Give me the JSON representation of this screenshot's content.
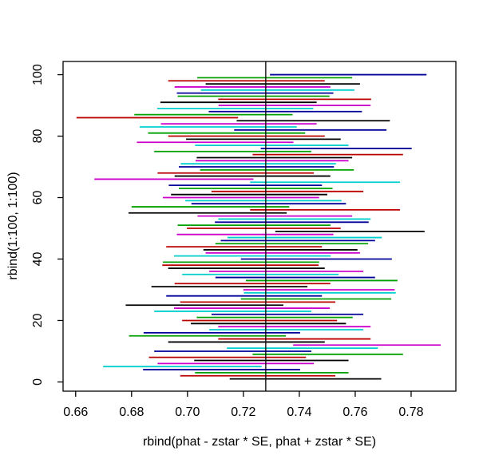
{
  "chart_data": {
    "type": "line",
    "variant": "horizontal-confidence-interval-segments",
    "title": "",
    "xlabel": "rbind(phat - zstar * SE, phat + zstar * SE)",
    "ylabel": "rbind(1:100, 1:100)",
    "xlim": [
      0.6555,
      0.796
    ],
    "ylim": [
      -3,
      104.3
    ],
    "grid": false,
    "legend": "none",
    "x_ticks": [
      {
        "value": 0.66,
        "label": "0.66"
      },
      {
        "value": 0.68,
        "label": "0.68"
      },
      {
        "value": 0.7,
        "label": "0.70"
      },
      {
        "value": 0.72,
        "label": "0.72"
      },
      {
        "value": 0.74,
        "label": "0.74"
      },
      {
        "value": 0.76,
        "label": "0.76"
      },
      {
        "value": 0.78,
        "label": "0.78"
      }
    ],
    "y_ticks": [
      {
        "value": 0,
        "label": "0"
      },
      {
        "value": 20,
        "label": "20"
      },
      {
        "value": 40,
        "label": "40"
      },
      {
        "value": 60,
        "label": "60"
      },
      {
        "value": 80,
        "label": "80"
      },
      {
        "value": 100,
        "label": "100"
      }
    ],
    "reference_line_x": 0.728,
    "palette": {
      "black": "#000000",
      "red": "#BB0000",
      "green": "#00A000",
      "blue": "#000099",
      "cyan": "#00CFCF",
      "magenta": "#CC00CC"
    },
    "color_cycle": [
      "black",
      "red",
      "green",
      "blue",
      "cyan",
      "magenta"
    ],
    "segments_columns": [
      "y",
      "x0",
      "x1",
      "color"
    ],
    "segments": [
      {
        "y": 1,
        "x0": 0.7151,
        "x1": 0.7693,
        "color": "black"
      },
      {
        "y": 2,
        "x0": 0.6974,
        "x1": 0.7529,
        "color": "red"
      },
      {
        "y": 3,
        "x0": 0.7027,
        "x1": 0.7576,
        "color": "green"
      },
      {
        "y": 4,
        "x0": 0.6841,
        "x1": 0.7403,
        "color": "blue"
      },
      {
        "y": 5,
        "x0": 0.6698,
        "x1": 0.7265,
        "color": "cyan"
      },
      {
        "y": 6,
        "x0": 0.6893,
        "x1": 0.7452,
        "color": "magenta"
      },
      {
        "y": 7,
        "x0": 0.7024,
        "x1": 0.7576,
        "color": "black"
      },
      {
        "y": 8,
        "x0": 0.6862,
        "x1": 0.7424,
        "color": "red"
      },
      {
        "y": 9,
        "x0": 0.7233,
        "x1": 0.7771,
        "color": "green"
      },
      {
        "y": 10,
        "x0": 0.6881,
        "x1": 0.7443,
        "color": "blue"
      },
      {
        "y": 11,
        "x0": 0.7141,
        "x1": 0.7681,
        "color": "cyan"
      },
      {
        "y": 12,
        "x0": 0.7378,
        "x1": 0.7906,
        "color": "magenta"
      },
      {
        "y": 13,
        "x0": 0.6931,
        "x1": 0.7491,
        "color": "black"
      },
      {
        "y": 14,
        "x0": 0.711,
        "x1": 0.7655,
        "color": "red"
      },
      {
        "y": 15,
        "x0": 0.6791,
        "x1": 0.7352,
        "color": "green"
      },
      {
        "y": 16,
        "x0": 0.6843,
        "x1": 0.7403,
        "color": "blue"
      },
      {
        "y": 17,
        "x0": 0.7078,
        "x1": 0.7629,
        "color": "cyan"
      },
      {
        "y": 18,
        "x0": 0.711,
        "x1": 0.7655,
        "color": "magenta"
      },
      {
        "y": 19,
        "x0": 0.7012,
        "x1": 0.7567,
        "color": "black"
      },
      {
        "y": 20,
        "x0": 0.6981,
        "x1": 0.7535,
        "color": "red"
      },
      {
        "y": 21,
        "x0": 0.7033,
        "x1": 0.7591,
        "color": "green"
      },
      {
        "y": 22,
        "x0": 0.7086,
        "x1": 0.7629,
        "color": "blue"
      },
      {
        "y": 23,
        "x0": 0.6881,
        "x1": 0.7443,
        "color": "cyan"
      },
      {
        "y": 24,
        "x0": 0.6952,
        "x1": 0.7509,
        "color": "magenta"
      },
      {
        "y": 25,
        "x0": 0.6779,
        "x1": 0.7343,
        "color": "black"
      },
      {
        "y": 26,
        "x0": 0.6974,
        "x1": 0.7529,
        "color": "red"
      },
      {
        "y": 27,
        "x0": 0.7191,
        "x1": 0.7729,
        "color": "green"
      },
      {
        "y": 28,
        "x0": 0.6924,
        "x1": 0.7481,
        "color": "blue"
      },
      {
        "y": 29,
        "x0": 0.7202,
        "x1": 0.7745,
        "color": "cyan"
      },
      {
        "y": 30,
        "x0": 0.72,
        "x1": 0.7741,
        "color": "magenta"
      },
      {
        "y": 31,
        "x0": 0.6871,
        "x1": 0.7429,
        "color": "black"
      },
      {
        "y": 32,
        "x0": 0.6954,
        "x1": 0.7511,
        "color": "red"
      },
      {
        "y": 33,
        "x0": 0.7209,
        "x1": 0.7751,
        "color": "green"
      },
      {
        "y": 34,
        "x0": 0.71,
        "x1": 0.7671,
        "color": "blue"
      },
      {
        "y": 35,
        "x0": 0.6981,
        "x1": 0.7541,
        "color": "cyan"
      },
      {
        "y": 36,
        "x0": 0.7078,
        "x1": 0.7629,
        "color": "magenta"
      },
      {
        "y": 37,
        "x0": 0.6931,
        "x1": 0.7491,
        "color": "black"
      },
      {
        "y": 38,
        "x0": 0.691,
        "x1": 0.7469,
        "color": "red"
      },
      {
        "y": 39,
        "x0": 0.6912,
        "x1": 0.7471,
        "color": "green"
      },
      {
        "y": 40,
        "x0": 0.7191,
        "x1": 0.7731,
        "color": "blue"
      },
      {
        "y": 41,
        "x0": 0.6952,
        "x1": 0.7512,
        "color": "cyan"
      },
      {
        "y": 42,
        "x0": 0.7065,
        "x1": 0.7617,
        "color": "magenta"
      },
      {
        "y": 43,
        "x0": 0.7057,
        "x1": 0.7608,
        "color": "black"
      },
      {
        "y": 44,
        "x0": 0.6924,
        "x1": 0.7481,
        "color": "red"
      },
      {
        "y": 45,
        "x0": 0.71,
        "x1": 0.7646,
        "color": "green"
      },
      {
        "y": 46,
        "x0": 0.7119,
        "x1": 0.7671,
        "color": "blue"
      },
      {
        "y": 47,
        "x0": 0.7143,
        "x1": 0.7695,
        "color": "cyan"
      },
      {
        "y": 48,
        "x0": 0.6962,
        "x1": 0.7522,
        "color": "magenta"
      },
      {
        "y": 49,
        "x0": 0.7314,
        "x1": 0.7848,
        "color": "black"
      },
      {
        "y": 50,
        "x0": 0.6998,
        "x1": 0.7548,
        "color": "red"
      },
      {
        "y": 51,
        "x0": 0.6965,
        "x1": 0.7512,
        "color": "green"
      },
      {
        "y": 52,
        "x0": 0.7098,
        "x1": 0.7648,
        "color": "blue"
      },
      {
        "y": 53,
        "x0": 0.711,
        "x1": 0.7655,
        "color": "cyan"
      },
      {
        "y": 54,
        "x0": 0.7036,
        "x1": 0.7589,
        "color": "magenta"
      },
      {
        "y": 55,
        "x0": 0.6789,
        "x1": 0.7355,
        "color": "black"
      },
      {
        "y": 56,
        "x0": 0.7224,
        "x1": 0.776,
        "color": "red"
      },
      {
        "y": 57,
        "x0": 0.68,
        "x1": 0.7364,
        "color": "green"
      },
      {
        "y": 58,
        "x0": 0.7014,
        "x1": 0.7567,
        "color": "blue"
      },
      {
        "y": 59,
        "x0": 0.6992,
        "x1": 0.7551,
        "color": "cyan"
      },
      {
        "y": 60,
        "x0": 0.6912,
        "x1": 0.7471,
        "color": "magenta"
      },
      {
        "y": 61,
        "x0": 0.6941,
        "x1": 0.75,
        "color": "black"
      },
      {
        "y": 62,
        "x0": 0.7086,
        "x1": 0.7629,
        "color": "red"
      },
      {
        "y": 63,
        "x0": 0.6969,
        "x1": 0.7519,
        "color": "green"
      },
      {
        "y": 64,
        "x0": 0.6933,
        "x1": 0.7481,
        "color": "blue"
      },
      {
        "y": 65,
        "x0": 0.7224,
        "x1": 0.776,
        "color": "cyan"
      },
      {
        "y": 66,
        "x0": 0.6667,
        "x1": 0.7236,
        "color": "magenta"
      },
      {
        "y": 67,
        "x0": 0.6954,
        "x1": 0.7511,
        "color": "black"
      },
      {
        "y": 68,
        "x0": 0.6893,
        "x1": 0.7452,
        "color": "red"
      },
      {
        "y": 69,
        "x0": 0.7045,
        "x1": 0.7595,
        "color": "green"
      },
      {
        "y": 70,
        "x0": 0.6969,
        "x1": 0.7524,
        "color": "blue"
      },
      {
        "y": 71,
        "x0": 0.6976,
        "x1": 0.7531,
        "color": "cyan"
      },
      {
        "y": 72,
        "x0": 0.7029,
        "x1": 0.7576,
        "color": "magenta"
      },
      {
        "y": 73,
        "x0": 0.7033,
        "x1": 0.7589,
        "color": "black"
      },
      {
        "y": 74,
        "x0": 0.7233,
        "x1": 0.7771,
        "color": "red"
      },
      {
        "y": 75,
        "x0": 0.6881,
        "x1": 0.7443,
        "color": "green"
      },
      {
        "y": 76,
        "x0": 0.7262,
        "x1": 0.7802,
        "color": "blue"
      },
      {
        "y": 77,
        "x0": 0.7027,
        "x1": 0.7576,
        "color": "cyan"
      },
      {
        "y": 78,
        "x0": 0.6819,
        "x1": 0.7379,
        "color": "magenta"
      },
      {
        "y": 79,
        "x0": 0.6995,
        "x1": 0.7548,
        "color": "black"
      },
      {
        "y": 80,
        "x0": 0.6931,
        "x1": 0.7491,
        "color": "red"
      },
      {
        "y": 81,
        "x0": 0.6859,
        "x1": 0.7421,
        "color": "green"
      },
      {
        "y": 82,
        "x0": 0.7167,
        "x1": 0.7712,
        "color": "blue"
      },
      {
        "y": 83,
        "x0": 0.6829,
        "x1": 0.7391,
        "color": "cyan"
      },
      {
        "y": 84,
        "x0": 0.6905,
        "x1": 0.7462,
        "color": "magenta"
      },
      {
        "y": 85,
        "x0": 0.7176,
        "x1": 0.7724,
        "color": "black"
      },
      {
        "y": 86,
        "x0": 0.6603,
        "x1": 0.7181,
        "color": "red"
      },
      {
        "y": 87,
        "x0": 0.681,
        "x1": 0.7376,
        "color": "green"
      },
      {
        "y": 88,
        "x0": 0.7076,
        "x1": 0.7624,
        "color": "blue"
      },
      {
        "y": 89,
        "x0": 0.6892,
        "x1": 0.745,
        "color": "cyan"
      },
      {
        "y": 90,
        "x0": 0.7111,
        "x1": 0.7655,
        "color": "magenta"
      },
      {
        "y": 91,
        "x0": 0.6903,
        "x1": 0.7462,
        "color": "black"
      },
      {
        "y": 92,
        "x0": 0.711,
        "x1": 0.7657,
        "color": "red"
      },
      {
        "y": 93,
        "x0": 0.6965,
        "x1": 0.7508,
        "color": "green"
      },
      {
        "y": 94,
        "x0": 0.6962,
        "x1": 0.7522,
        "color": "blue"
      },
      {
        "y": 95,
        "x0": 0.7048,
        "x1": 0.7597,
        "color": "cyan"
      },
      {
        "y": 96,
        "x0": 0.6954,
        "x1": 0.7511,
        "color": "magenta"
      },
      {
        "y": 97,
        "x0": 0.7065,
        "x1": 0.7617,
        "color": "black"
      },
      {
        "y": 98,
        "x0": 0.6931,
        "x1": 0.7491,
        "color": "red"
      },
      {
        "y": 99,
        "x0": 0.7035,
        "x1": 0.7589,
        "color": "green"
      },
      {
        "y": 100,
        "x0": 0.7295,
        "x1": 0.7855,
        "color": "blue"
      }
    ]
  }
}
